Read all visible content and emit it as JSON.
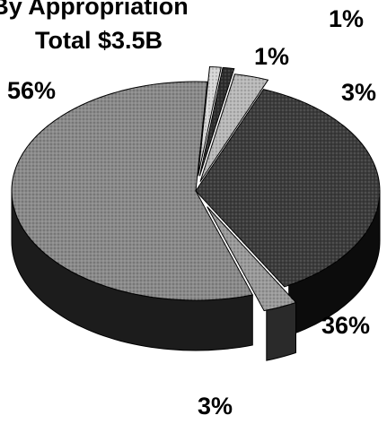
{
  "chart_data": {
    "type": "pie",
    "title_lines": [
      "By Appropriation",
      "Total $3.5B"
    ],
    "slices": [
      {
        "label": "56%",
        "value": 56,
        "top": "#8a8a8a",
        "side": "#1c1c1c"
      },
      {
        "label": "1%",
        "value": 1,
        "top": "#d6d6d6",
        "side": "#5a5a5a"
      },
      {
        "label": "1%",
        "value": 1,
        "top": "#2e2e2e",
        "side": "#0a0a0a"
      },
      {
        "label": "3%",
        "value": 3,
        "top": "#b9b9b9",
        "side": "#3c3c3c"
      },
      {
        "label": "36%",
        "value": 36,
        "top": "#3c3c3c",
        "side": "#0c0c0c"
      },
      {
        "label": "3%",
        "value": 3,
        "top": "#9a9a9a",
        "side": "#2a2a2a"
      }
    ]
  }
}
